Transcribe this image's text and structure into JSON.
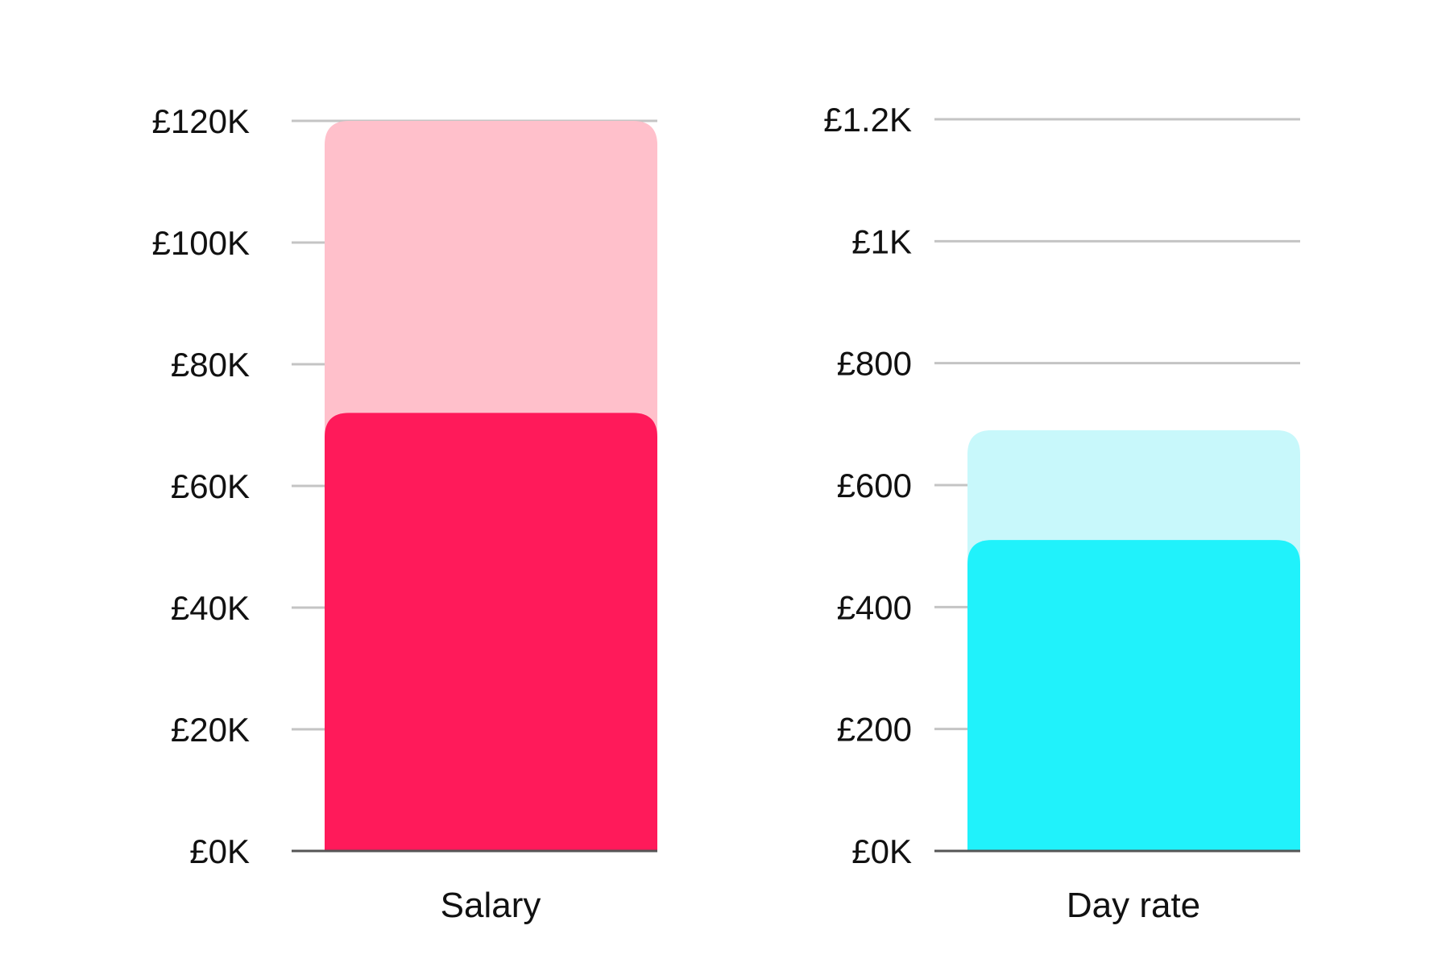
{
  "chart_data": [
    {
      "type": "bar",
      "categories": [
        "Salary"
      ],
      "series": [
        {
          "values": [
            120000
          ],
          "color": "#FFC0CB"
        },
        {
          "values": [
            72000
          ],
          "color": "#FF1A5A"
        }
      ],
      "yticks": [
        0,
        20000,
        40000,
        60000,
        80000,
        100000,
        120000
      ],
      "ytick_labels": [
        "£0K",
        "£20K",
        "£40K",
        "£60K",
        "£80K",
        "£100K",
        "£120K"
      ],
      "ylim": [
        0,
        120000
      ],
      "grid": true,
      "legend": "none"
    },
    {
      "type": "bar",
      "categories": [
        "Day rate"
      ],
      "series": [
        {
          "values": [
            690
          ],
          "color": "#C8F8FB"
        },
        {
          "values": [
            510
          ],
          "color": "#20F2FB"
        }
      ],
      "yticks": [
        0,
        200,
        400,
        600,
        800,
        1000,
        1200
      ],
      "ytick_labels": [
        "£0K",
        "£200",
        "£400",
        "£600",
        "£800",
        "£1K",
        "£1.2K"
      ],
      "ylim": [
        0,
        1200
      ],
      "grid": true,
      "legend": "none"
    }
  ]
}
